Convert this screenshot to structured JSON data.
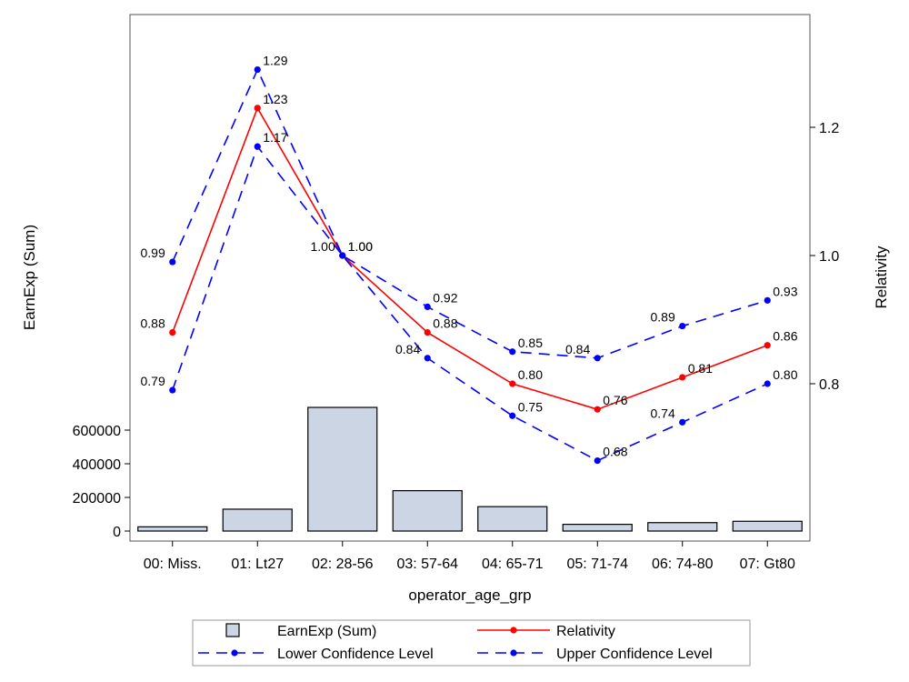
{
  "chart_data": {
    "type": "bar+line",
    "title": "",
    "xlabel": "operator_age_grp",
    "ylabel_left": "EarnExp (Sum)",
    "ylabel_right": "Relativity",
    "categories": [
      "00: Miss.",
      "01: Lt27",
      "02: 28-56",
      "03: 57-64",
      "04: 65-71",
      "05: 71-74",
      "06: 74-80",
      "07: Gt80"
    ],
    "left_axis": {
      "ticks": [
        0,
        200000,
        400000,
        600000
      ],
      "tick_labels": [
        "0",
        "200000",
        "400000",
        "600000"
      ],
      "range": [
        0,
        2200000
      ]
    },
    "right_axis": {
      "ticks": [
        0.8,
        1.0,
        1.2
      ],
      "tick_labels": [
        "0.8",
        "1.0",
        "1.2"
      ],
      "range": [
        0.575,
        1.375
      ]
    },
    "bars": {
      "name": "EarnExp (Sum)",
      "values": [
        25000,
        130000,
        735000,
        240000,
        145000,
        40000,
        50000,
        58000
      ],
      "color": "#cbd5e3"
    },
    "series": [
      {
        "name": "Relativity",
        "color": "#ff0000",
        "dash": "solid",
        "values": [
          0.88,
          1.23,
          1.0,
          0.88,
          0.8,
          0.76,
          0.81,
          0.86
        ],
        "labels": [
          "0.88",
          "1.23",
          "1.00",
          "0.88",
          "0.80",
          "0.76",
          "0.81",
          "0.86"
        ]
      },
      {
        "name": "Lower Confidence Level",
        "color": "#0000ff",
        "dash": "dashed",
        "values": [
          0.79,
          1.17,
          1.0,
          0.84,
          0.75,
          0.68,
          0.74,
          0.8
        ],
        "labels": [
          "0.79",
          "1.17",
          "1.00",
          "0.84",
          "0.75",
          "0.68",
          "0.74",
          "0.80"
        ]
      },
      {
        "name": "Upper Confidence Level",
        "color": "#0000ff",
        "dash": "dashed",
        "values": [
          0.99,
          1.29,
          1.0,
          0.92,
          0.85,
          0.84,
          0.89,
          0.93
        ],
        "labels": [
          "0.99",
          "1.29",
          "1.00",
          "0.92",
          "0.85",
          "0.84",
          "0.89",
          "0.93"
        ]
      }
    ],
    "legend": {
      "placement": "bottom",
      "entries": [
        "EarnExp (Sum)",
        "Relativity",
        "Lower Confidence Level",
        "Upper Confidence Level"
      ]
    },
    "grid": false
  }
}
